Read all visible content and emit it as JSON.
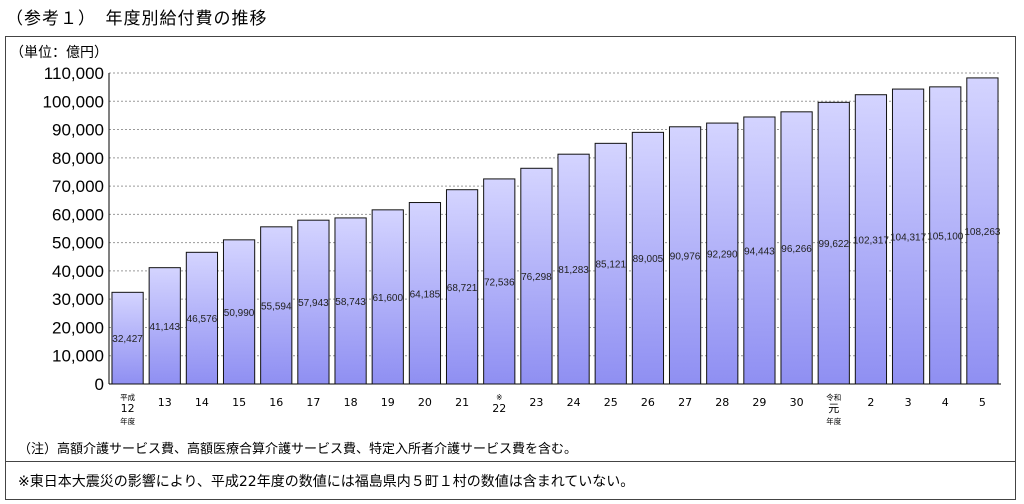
{
  "heading": "（参考１）　年度別給付費の推移",
  "note_bottom": "※東日本大震災の影響により、平成22年度の数値には福島県内５町１村の数値は含まれていない。",
  "chart_data": {
    "type": "bar",
    "title": "",
    "ylabel": "（単位：億円）",
    "xlabel": "",
    "ylim": [
      0,
      110000
    ],
    "yticks": [
      "0",
      "10,000",
      "20,000",
      "30,000",
      "40,000",
      "50,000",
      "60,000",
      "70,000",
      "80,000",
      "90,000",
      "100,000",
      "110,000"
    ],
    "grid": true,
    "legend": "none",
    "categories": [
      [
        "平成",
        "12",
        "年度"
      ],
      [
        "13"
      ],
      [
        "14"
      ],
      [
        "15"
      ],
      [
        "16"
      ],
      [
        "17"
      ],
      [
        "18"
      ],
      [
        "19"
      ],
      [
        "20"
      ],
      [
        "21"
      ],
      [
        "※",
        "22"
      ],
      [
        "23"
      ],
      [
        "24"
      ],
      [
        "25"
      ],
      [
        "26"
      ],
      [
        "27"
      ],
      [
        "28"
      ],
      [
        "29"
      ],
      [
        "30"
      ],
      [
        "令和",
        "元",
        "年度"
      ],
      [
        "2"
      ],
      [
        "3"
      ],
      [
        "4"
      ],
      [
        "5"
      ]
    ],
    "values": [
      32427,
      41143,
      46576,
      50990,
      55594,
      57943,
      58743,
      61600,
      64185,
      68721,
      72536,
      76298,
      81283,
      85121,
      89005,
      90976,
      92290,
      94443,
      96266,
      99622,
      102317,
      104317,
      105100,
      108263
    ],
    "value_labels": [
      "32,427",
      "41,143",
      "46,576",
      "50,990",
      "55,594",
      "57,943",
      "58,743",
      "61,600",
      "64,185",
      "68,721",
      "72,536",
      "76,298",
      "81,283",
      "85,121",
      "89,005",
      "90,976",
      "92,290",
      "94,443",
      "96,266",
      "99,622",
      "102,317",
      "104,317",
      "105,100",
      "108,263"
    ],
    "footnote": "（注）高額介護サービス費、高額医療合算介護サービス費、特定入所者介護サービス費を含む。",
    "colors": {
      "bar_top": "#d4d4ff",
      "bar_bottom": "#8f8ff2",
      "bar_edge": "#111111",
      "grid": "#9a9a9a"
    }
  }
}
